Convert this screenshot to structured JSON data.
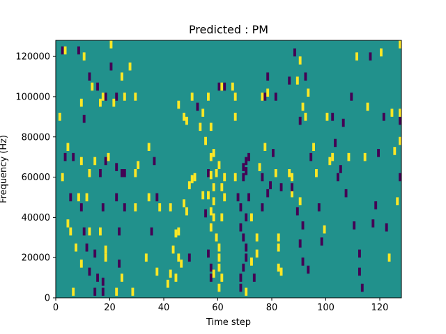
{
  "chart_data": {
    "type": "heatmap",
    "title": "Predicted : PM",
    "xlabel": "Time step",
    "ylabel": "Frequency (Hz)",
    "xlim": [
      0,
      128
    ],
    "ylim": [
      0,
      128000
    ],
    "x_ticks": [
      0,
      20,
      40,
      60,
      80,
      100,
      120
    ],
    "y_ticks": [
      0,
      20000,
      40000,
      60000,
      80000,
      100000,
      120000
    ],
    "x_tick_labels": [
      "0",
      "20",
      "40",
      "60",
      "80",
      "100",
      "120"
    ],
    "y_tick_labels": [
      "0",
      "20000",
      "40000",
      "60000",
      "80000",
      "100000",
      "120000"
    ],
    "colormap": "viridis",
    "grid": false,
    "colors": {
      "background": "#21918c",
      "high": "#fde725",
      "low": "#440154"
    },
    "cells": [
      [
        2,
        123000,
        "low"
      ],
      [
        3,
        123000,
        "high"
      ],
      [
        8,
        123000,
        "low"
      ],
      [
        10,
        120000,
        "high"
      ],
      [
        20,
        126000,
        "high"
      ],
      [
        20,
        115000,
        "low"
      ],
      [
        12,
        110000,
        "low"
      ],
      [
        24,
        110000,
        "high"
      ],
      [
        27,
        115000,
        "high"
      ],
      [
        13,
        105000,
        "high"
      ],
      [
        15,
        105000,
        "low"
      ],
      [
        18,
        100000,
        "low"
      ],
      [
        22,
        100000,
        "low"
      ],
      [
        17,
        100000,
        "high"
      ],
      [
        25,
        100000,
        "high"
      ],
      [
        29,
        100000,
        "high"
      ],
      [
        9,
        97000,
        "high"
      ],
      [
        16,
        97000,
        "high"
      ],
      [
        21,
        97000,
        "high"
      ],
      [
        1,
        90000,
        "high"
      ],
      [
        10,
        89000,
        "low"
      ],
      [
        3,
        70000,
        "low"
      ],
      [
        4,
        75000,
        "high"
      ],
      [
        6,
        70000,
        "low"
      ],
      [
        9,
        68000,
        "high"
      ],
      [
        14,
        68000,
        "high"
      ],
      [
        18,
        68000,
        "low"
      ],
      [
        19,
        70000,
        "high"
      ],
      [
        22,
        65000,
        "low"
      ],
      [
        30,
        66000,
        "high"
      ],
      [
        34,
        75000,
        "high"
      ],
      [
        36,
        68000,
        "low"
      ],
      [
        12,
        62000,
        "high"
      ],
      [
        16,
        62000,
        "low"
      ],
      [
        25,
        62000,
        "low"
      ],
      [
        29,
        62000,
        "high"
      ],
      [
        2,
        60000,
        "high"
      ],
      [
        24,
        62000,
        "low"
      ],
      [
        5,
        50000,
        "low"
      ],
      [
        8,
        50000,
        "high"
      ],
      [
        11,
        50000,
        "high"
      ],
      [
        22,
        50000,
        "low"
      ],
      [
        34,
        50000,
        "high"
      ],
      [
        38,
        45000,
        "high"
      ],
      [
        42,
        45000,
        "high"
      ],
      [
        9,
        45000,
        "low"
      ],
      [
        17,
        45000,
        "low"
      ],
      [
        25,
        45000,
        "low"
      ],
      [
        29,
        45000,
        "high"
      ],
      [
        37,
        50000,
        "low"
      ],
      [
        4,
        37000,
        "high"
      ],
      [
        5,
        33000,
        "high"
      ],
      [
        10,
        33000,
        "low"
      ],
      [
        12,
        33000,
        "high"
      ],
      [
        16,
        33000,
        "high"
      ],
      [
        23,
        33000,
        "low"
      ],
      [
        35,
        33000,
        "low"
      ],
      [
        11,
        25000,
        "low"
      ],
      [
        7,
        25000,
        "high"
      ],
      [
        14,
        22000,
        "low"
      ],
      [
        18,
        24000,
        "high"
      ],
      [
        18,
        20000,
        "high"
      ],
      [
        23,
        17000,
        "low"
      ],
      [
        9,
        17000,
        "high"
      ],
      [
        12,
        13000,
        "low"
      ],
      [
        15,
        10000,
        "low"
      ],
      [
        17,
        8000,
        "low"
      ],
      [
        24,
        10000,
        "high"
      ],
      [
        6,
        3000,
        "high"
      ],
      [
        14,
        3000,
        "low"
      ],
      [
        17,
        3000,
        "low"
      ],
      [
        22,
        3000,
        "high"
      ],
      [
        28,
        3000,
        "high"
      ],
      [
        33,
        20000,
        "high"
      ],
      [
        37,
        13000,
        "high"
      ],
      [
        41,
        7000,
        "high"
      ],
      [
        42,
        12000,
        "high"
      ],
      [
        44,
        10000,
        "high"
      ],
      [
        45,
        20000,
        "high"
      ],
      [
        46,
        17000,
        "high"
      ],
      [
        49,
        20000,
        "low"
      ],
      [
        43,
        24000,
        "high"
      ],
      [
        44,
        32000,
        "high"
      ],
      [
        45,
        33000,
        "high"
      ],
      [
        47,
        47000,
        "high"
      ],
      [
        48,
        43000,
        "high"
      ],
      [
        49,
        56000,
        "high"
      ],
      [
        50,
        59000,
        "high"
      ],
      [
        51,
        60000,
        "high"
      ],
      [
        54,
        51000,
        "high"
      ],
      [
        56,
        51000,
        "high"
      ],
      [
        58,
        48000,
        "high"
      ],
      [
        57,
        43000,
        "high"
      ],
      [
        58,
        40000,
        "high"
      ],
      [
        57,
        35000,
        "high"
      ],
      [
        59,
        30000,
        "high"
      ],
      [
        60,
        25000,
        "high"
      ],
      [
        60,
        20000,
        "high"
      ],
      [
        60,
        15000,
        "high"
      ],
      [
        61,
        10000,
        "high"
      ],
      [
        60,
        5000,
        "high"
      ],
      [
        62,
        60000,
        "high"
      ],
      [
        61,
        55000,
        "high"
      ],
      [
        62,
        50000,
        "high"
      ],
      [
        61,
        40000,
        "high"
      ],
      [
        59,
        62000,
        "high"
      ],
      [
        58,
        72000,
        "high"
      ],
      [
        55,
        78000,
        "high"
      ],
      [
        57,
        70000,
        "high"
      ],
      [
        60,
        66000,
        "high"
      ],
      [
        56,
        62000,
        "low"
      ],
      [
        57,
        61000,
        "high"
      ],
      [
        58,
        55000,
        "high"
      ],
      [
        55,
        42000,
        "low"
      ],
      [
        56,
        22000,
        "low"
      ],
      [
        57,
        15000,
        "low"
      ],
      [
        57,
        10000,
        "low"
      ],
      [
        58,
        12000,
        "high"
      ],
      [
        56,
        100000,
        "high"
      ],
      [
        54,
        92000,
        "high"
      ],
      [
        52,
        95000,
        "low"
      ],
      [
        50,
        100000,
        "high"
      ],
      [
        48,
        88000,
        "high"
      ],
      [
        47,
        90000,
        "high"
      ],
      [
        45,
        96000,
        "high"
      ],
      [
        53,
        85000,
        "high"
      ],
      [
        57,
        85000,
        "high"
      ],
      [
        60,
        105000,
        "low"
      ],
      [
        61,
        105000,
        "high"
      ],
      [
        62,
        105000,
        "low"
      ],
      [
        65,
        105000,
        "high"
      ],
      [
        66,
        60000,
        "high"
      ],
      [
        66,
        100000,
        "high"
      ],
      [
        66,
        90000,
        "high"
      ],
      [
        67,
        50000,
        "low"
      ],
      [
        68,
        45000,
        "low"
      ],
      [
        69,
        60000,
        "low"
      ],
      [
        70,
        63000,
        "low"
      ],
      [
        69,
        65000,
        "low"
      ],
      [
        70,
        68000,
        "low"
      ],
      [
        68,
        35000,
        "low"
      ],
      [
        69,
        30000,
        "low"
      ],
      [
        70,
        25000,
        "low"
      ],
      [
        70,
        20000,
        "low"
      ],
      [
        69,
        15000,
        "low"
      ],
      [
        68,
        10000,
        "low"
      ],
      [
        68,
        5000,
        "low"
      ],
      [
        71,
        70000,
        "low"
      ],
      [
        71,
        50000,
        "low"
      ],
      [
        70,
        40000,
        "low"
      ],
      [
        72,
        40000,
        "high"
      ],
      [
        74,
        22000,
        "high"
      ],
      [
        74,
        30000,
        "high"
      ],
      [
        72,
        18000,
        "high"
      ],
      [
        70,
        3000,
        "high"
      ],
      [
        73,
        10000,
        "low"
      ],
      [
        76,
        60000,
        "low"
      ],
      [
        75,
        65000,
        "high"
      ],
      [
        77,
        75000,
        "high"
      ],
      [
        76,
        45000,
        "low"
      ],
      [
        78,
        52000,
        "low"
      ],
      [
        79,
        56000,
        "low"
      ],
      [
        76,
        100000,
        "high"
      ],
      [
        77,
        100000,
        "low"
      ],
      [
        78,
        102000,
        "high"
      ],
      [
        78,
        110000,
        "low"
      ],
      [
        81,
        100000,
        "low"
      ],
      [
        80,
        72000,
        "low"
      ],
      [
        81,
        62000,
        "high"
      ],
      [
        83,
        55000,
        "low"
      ],
      [
        82,
        30000,
        "high"
      ],
      [
        82,
        25000,
        "high"
      ],
      [
        82,
        15000,
        "high"
      ],
      [
        83,
        13000,
        "high"
      ],
      [
        86,
        108000,
        "low"
      ],
      [
        86,
        62000,
        "high"
      ],
      [
        87,
        60000,
        "high"
      ],
      [
        87,
        52000,
        "high"
      ],
      [
        87,
        55000,
        "low"
      ],
      [
        88,
        122000,
        "low"
      ],
      [
        89,
        43000,
        "low"
      ],
      [
        90,
        48000,
        "high"
      ],
      [
        90,
        27000,
        "low"
      ],
      [
        91,
        36000,
        "low"
      ],
      [
        91,
        18000,
        "low"
      ],
      [
        93,
        14000,
        "low"
      ],
      [
        90,
        88000,
        "low"
      ],
      [
        91,
        95000,
        "high"
      ],
      [
        92,
        90000,
        "high"
      ],
      [
        89,
        108000,
        "high"
      ],
      [
        90,
        118000,
        "high"
      ],
      [
        92,
        110000,
        "low"
      ],
      [
        93,
        102000,
        "high"
      ],
      [
        94,
        70000,
        "low"
      ],
      [
        95,
        75000,
        "high"
      ],
      [
        96,
        62000,
        "high"
      ],
      [
        97,
        45000,
        "low"
      ],
      [
        98,
        28000,
        "low"
      ],
      [
        99,
        34000,
        "high"
      ],
      [
        100,
        90000,
        "high"
      ],
      [
        101,
        68000,
        "high"
      ],
      [
        102,
        70000,
        "high"
      ],
      [
        102,
        90000,
        "low"
      ],
      [
        103,
        77000,
        "low"
      ],
      [
        104,
        60000,
        "low"
      ],
      [
        105,
        64000,
        "low"
      ],
      [
        106,
        87000,
        "low"
      ],
      [
        107,
        52000,
        "low"
      ],
      [
        108,
        70000,
        "high"
      ],
      [
        109,
        100000,
        "low"
      ],
      [
        110,
        36000,
        "low"
      ],
      [
        111,
        120000,
        "high"
      ],
      [
        112,
        13000,
        "low"
      ],
      [
        112,
        22000,
        "low"
      ],
      [
        113,
        5000,
        "low"
      ],
      [
        114,
        70000,
        "high"
      ],
      [
        115,
        95000,
        "high"
      ],
      [
        116,
        120000,
        "low"
      ],
      [
        117,
        37000,
        "low"
      ],
      [
        118,
        46000,
        "low"
      ],
      [
        119,
        72000,
        "low"
      ],
      [
        120,
        122000,
        "high"
      ],
      [
        121,
        90000,
        "low"
      ],
      [
        122,
        35000,
        "low"
      ],
      [
        123,
        20000,
        "high"
      ],
      [
        124,
        92000,
        "high"
      ],
      [
        125,
        73000,
        "high"
      ],
      [
        126,
        48000,
        "high"
      ],
      [
        127,
        60000,
        "low"
      ],
      [
        127,
        88000,
        "low"
      ],
      [
        128,
        92000,
        "high"
      ],
      [
        127,
        78000,
        "high"
      ],
      [
        128,
        126000,
        "high"
      ]
    ]
  }
}
